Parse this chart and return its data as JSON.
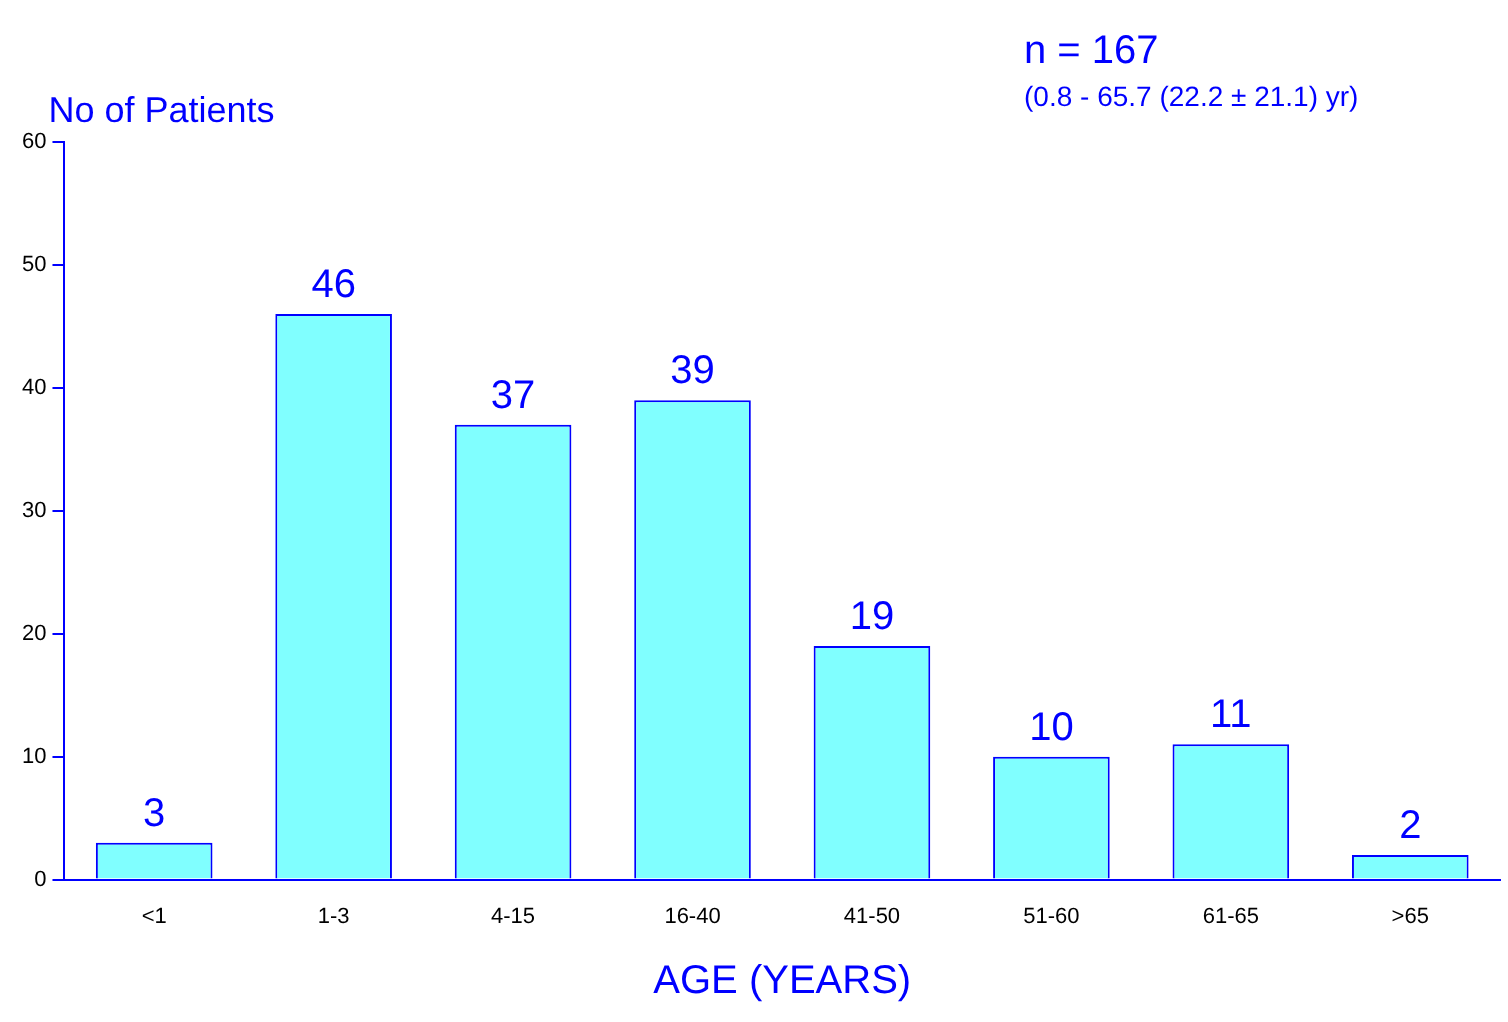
{
  "chart_data": {
    "type": "bar",
    "xlabel": "AGE (YEARS)",
    "ylabel": "No of Patients",
    "annotations": [
      "n = 167",
      "(0.8 - 65.7 (22.2 ± 21.1) yr)"
    ],
    "categories": [
      "<1",
      "1-3",
      "4-15",
      "16-40",
      "41-50",
      "51-60",
      "61-65",
      ">65"
    ],
    "values": [
      3,
      46,
      37,
      39,
      19,
      10,
      11,
      2
    ],
    "color": "#80ffff",
    "ylim": [
      0,
      60
    ],
    "yticks": [
      0,
      10,
      20,
      30,
      40,
      50,
      60
    ],
    "grid": false,
    "legend": false,
    "data_labels": true
  }
}
